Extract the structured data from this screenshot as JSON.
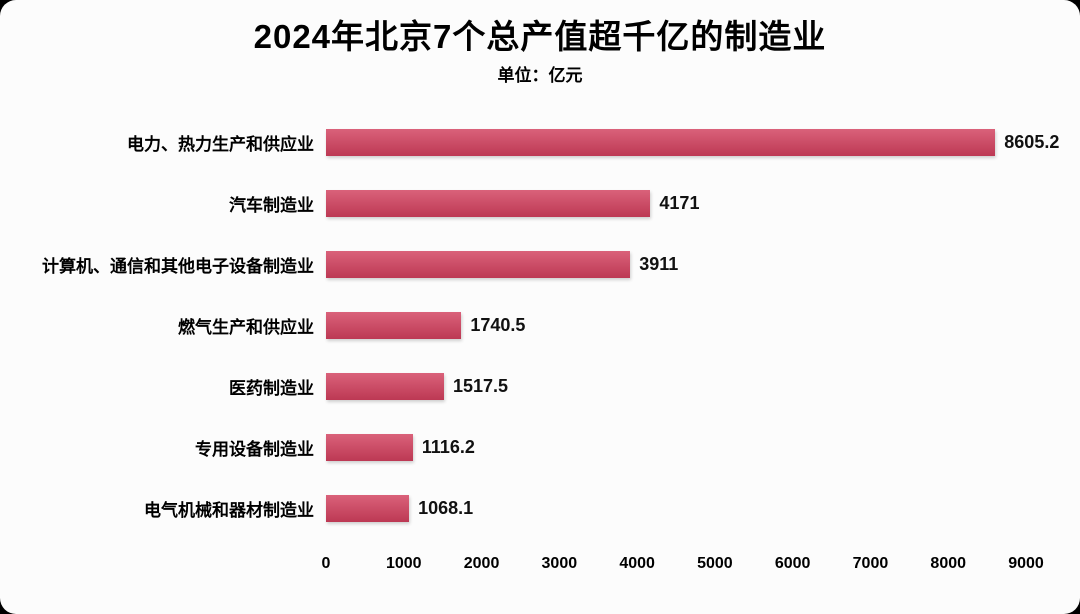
{
  "header": {
    "title": "2024年北京7个总产值超千亿的制造业",
    "subtitle": "单位：亿元"
  },
  "chart_data": {
    "type": "bar",
    "orientation": "horizontal",
    "title": "2024年北京7个总产值超千亿的制造业",
    "subtitle": "单位：亿元",
    "unit": "亿元",
    "categories": [
      "电力、热力生产和供应业",
      "汽车制造业",
      "计算机、通信和其他电子设备制造业",
      "燃气生产和供应业",
      "医药制造业",
      "专用设备制造业",
      "电气机械和器材制造业"
    ],
    "values": [
      8605.2,
      4171,
      3911,
      1740.5,
      1517.5,
      1116.2,
      1068.1
    ],
    "value_labels": [
      "8605.2",
      "4171",
      "3911",
      "1740.5",
      "1517.5",
      "1116.2",
      "1068.1"
    ],
    "xlabel": "",
    "ylabel": "",
    "xlim": [
      0,
      9000
    ],
    "x_ticks": [
      0,
      1000,
      2000,
      3000,
      4000,
      5000,
      6000,
      7000,
      8000,
      9000
    ],
    "grid": false,
    "legend": false,
    "bar_color": "#d23f5d",
    "background_color": "#fcfcfc",
    "text_color": "#000000"
  }
}
